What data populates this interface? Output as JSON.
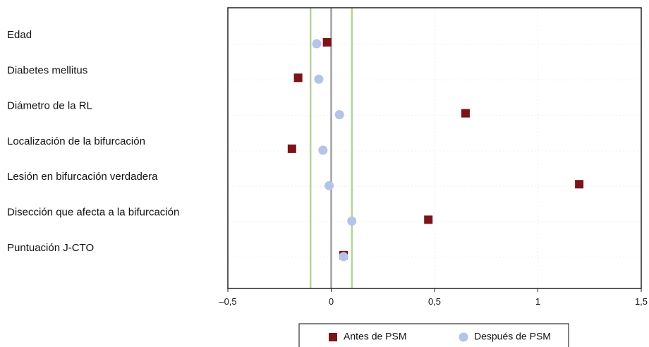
{
  "chart_data": {
    "type": "scatter",
    "categories": [
      "Edad",
      "Diabetes mellitus",
      "Diámetro de la RL",
      "Localización de la bifurcación",
      "Lesión en bifurcación verdadera",
      "Disección que afecta a la bifurcación",
      "Puntuación J-CTO"
    ],
    "series": [
      {
        "name": "Antes de PSM",
        "values": [
          -0.02,
          -0.16,
          0.65,
          -0.19,
          1.2,
          0.47,
          0.06
        ],
        "color": "#7a1418",
        "marker": "square"
      },
      {
        "name": "Después de PSM",
        "values": [
          -0.07,
          -0.06,
          0.04,
          -0.04,
          -0.01,
          0.1,
          0.06
        ],
        "color": "#b4c3e8",
        "marker": "circle"
      }
    ],
    "xlim": [
      -0.5,
      1.5
    ],
    "xticks": [
      -0.5,
      0,
      0.5,
      1,
      1.5
    ],
    "xtick_labels": [
      "–0,5",
      "0",
      "0,5",
      "1",
      "1,5"
    ],
    "reference_lines": [
      {
        "x": 0,
        "color": "#a0a0a0"
      },
      {
        "x": -0.1,
        "color": "#b5d39a"
      },
      {
        "x": 0.1,
        "color": "#b5d39a"
      }
    ],
    "grid": true,
    "legend_position": "bottom",
    "title": "",
    "xlabel": "",
    "ylabel": ""
  }
}
